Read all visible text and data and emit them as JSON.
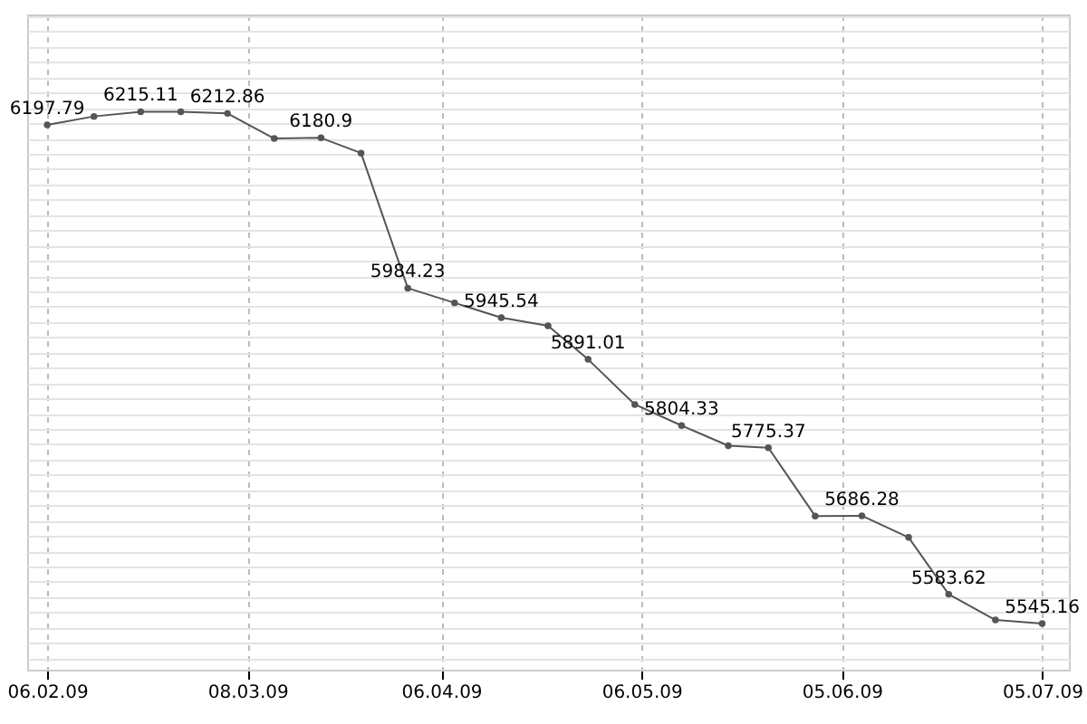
{
  "chart_data": {
    "type": "line",
    "x": [
      "2009-02-06",
      "2009-02-13",
      "2009-02-20",
      "2009-02-26",
      "2009-03-05",
      "2009-03-12",
      "2009-03-19",
      "2009-03-25",
      "2009-04-01",
      "2009-04-08",
      "2009-04-15",
      "2009-04-22",
      "2009-04-28",
      "2009-05-05",
      "2009-05-12",
      "2009-05-19",
      "2009-05-25",
      "2009-06-01",
      "2009-06-08",
      "2009-06-15",
      "2009-06-21",
      "2009-06-28",
      "2009-07-05"
    ],
    "series": [
      {
        "color": "#555555",
        "values": [
          6197.79,
          6209,
          6215.11,
          6215,
          6212.86,
          6180,
          6180.9,
          6161,
          5984.23,
          5965,
          5945.54,
          5935,
          5891.01,
          5832,
          5804.33,
          5778,
          5775.37,
          5686,
          5686.28,
          5658,
          5583.62,
          5550,
          5545.16
        ],
        "value_labels": [
          "6197.79",
          null,
          "6215.11",
          null,
          "6212.86",
          null,
          "6180.9",
          null,
          "5984.23",
          null,
          "5945.54",
          null,
          "5891.01",
          null,
          "5804.33",
          null,
          "5775.37",
          null,
          "5686.28",
          null,
          "5583.62",
          null,
          "5545.16"
        ]
      }
    ],
    "xlim": [
      "2009-02-03",
      "2009-07-09"
    ],
    "xticks": [
      {
        "value": "2009-02-06",
        "label": "06.02.09"
      },
      {
        "value": "2009-03-08",
        "label": "08.03.09"
      },
      {
        "value": "2009-04-06",
        "label": "06.04.09"
      },
      {
        "value": "2009-05-06",
        "label": "06.05.09"
      },
      {
        "value": "2009-06-05",
        "label": "05.06.09"
      },
      {
        "value": "2009-07-05",
        "label": "05.07.09"
      }
    ],
    "grid": true,
    "marker": "circle",
    "line_style": "solid",
    "tick_labels": "x"
  }
}
